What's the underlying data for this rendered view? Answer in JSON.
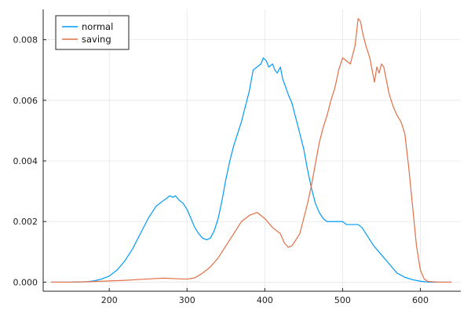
{
  "chart_data": {
    "type": "line",
    "xlim": [
      115,
      652
    ],
    "ylim": [
      -0.0003,
      0.009
    ],
    "x_ticks": [
      200,
      300,
      400,
      500,
      600
    ],
    "y_ticks": [
      0.0,
      0.002,
      0.004,
      0.006,
      0.008
    ],
    "y_tick_labels": [
      "0.000",
      "0.002",
      "0.004",
      "0.006",
      "0.008"
    ],
    "grid": true,
    "legend_position": "top-left",
    "series": [
      {
        "name": "normal",
        "color": "#009AFA",
        "points": [
          [
            125,
            0.0
          ],
          [
            150,
            0.0
          ],
          [
            170,
            1e-05
          ],
          [
            180,
            4e-05
          ],
          [
            190,
            0.0001
          ],
          [
            200,
            0.0002
          ],
          [
            210,
            0.0004
          ],
          [
            220,
            0.0007
          ],
          [
            230,
            0.0011
          ],
          [
            240,
            0.0016
          ],
          [
            250,
            0.0021
          ],
          [
            260,
            0.0025
          ],
          [
            270,
            0.0027
          ],
          [
            278,
            0.00285
          ],
          [
            282,
            0.0028
          ],
          [
            285,
            0.00285
          ],
          [
            290,
            0.0027
          ],
          [
            295,
            0.0026
          ],
          [
            300,
            0.0024
          ],
          [
            305,
            0.0021
          ],
          [
            310,
            0.0018
          ],
          [
            315,
            0.0016
          ],
          [
            320,
            0.00145
          ],
          [
            325,
            0.0014
          ],
          [
            330,
            0.00145
          ],
          [
            335,
            0.0017
          ],
          [
            340,
            0.0021
          ],
          [
            345,
            0.0027
          ],
          [
            350,
            0.0034
          ],
          [
            355,
            0.004
          ],
          [
            360,
            0.0045
          ],
          [
            365,
            0.0049
          ],
          [
            370,
            0.0053
          ],
          [
            375,
            0.0058
          ],
          [
            380,
            0.0063
          ],
          [
            385,
            0.007
          ],
          [
            390,
            0.0071
          ],
          [
            395,
            0.0072
          ],
          [
            398,
            0.0074
          ],
          [
            402,
            0.0073
          ],
          [
            405,
            0.0071
          ],
          [
            410,
            0.0072
          ],
          [
            413,
            0.007
          ],
          [
            416,
            0.0069
          ],
          [
            420,
            0.0071
          ],
          [
            423,
            0.0067
          ],
          [
            426,
            0.0065
          ],
          [
            430,
            0.0062
          ],
          [
            435,
            0.0059
          ],
          [
            440,
            0.0054
          ],
          [
            445,
            0.0049
          ],
          [
            450,
            0.0044
          ],
          [
            455,
            0.0037
          ],
          [
            460,
            0.0031
          ],
          [
            465,
            0.0026
          ],
          [
            470,
            0.0023
          ],
          [
            475,
            0.0021
          ],
          [
            480,
            0.002
          ],
          [
            485,
            0.002
          ],
          [
            490,
            0.002
          ],
          [
            495,
            0.002
          ],
          [
            500,
            0.002
          ],
          [
            505,
            0.0019
          ],
          [
            510,
            0.0019
          ],
          [
            515,
            0.0019
          ],
          [
            520,
            0.0019
          ],
          [
            525,
            0.0018
          ],
          [
            530,
            0.0016
          ],
          [
            540,
            0.0012
          ],
          [
            550,
            0.0009
          ],
          [
            560,
            0.0006
          ],
          [
            570,
            0.0003
          ],
          [
            580,
            0.00016
          ],
          [
            590,
            8e-05
          ],
          [
            600,
            3e-05
          ],
          [
            610,
            0.0
          ],
          [
            625,
            0.0
          ],
          [
            640,
            0.0
          ]
        ]
      },
      {
        "name": "saving",
        "color": "#E26F46",
        "points": [
          [
            125,
            0.0
          ],
          [
            150,
            0.0
          ],
          [
            180,
            2e-05
          ],
          [
            200,
            4e-05
          ],
          [
            220,
            6e-05
          ],
          [
            240,
            9e-05
          ],
          [
            260,
            0.00012
          ],
          [
            270,
            0.00013
          ],
          [
            280,
            0.00012
          ],
          [
            290,
            0.00011
          ],
          [
            300,
            0.0001
          ],
          [
            310,
            0.00014
          ],
          [
            320,
            0.0003
          ],
          [
            330,
            0.0005
          ],
          [
            340,
            0.0008
          ],
          [
            350,
            0.0012
          ],
          [
            360,
            0.0016
          ],
          [
            370,
            0.002
          ],
          [
            380,
            0.0022
          ],
          [
            390,
            0.0023
          ],
          [
            395,
            0.0022
          ],
          [
            400,
            0.0021
          ],
          [
            410,
            0.0018
          ],
          [
            420,
            0.0016
          ],
          [
            425,
            0.0013
          ],
          [
            430,
            0.00115
          ],
          [
            435,
            0.0012
          ],
          [
            440,
            0.0014
          ],
          [
            445,
            0.0016
          ],
          [
            450,
            0.0021
          ],
          [
            455,
            0.0026
          ],
          [
            460,
            0.0032
          ],
          [
            465,
            0.0039
          ],
          [
            470,
            0.0046
          ],
          [
            475,
            0.0051
          ],
          [
            480,
            0.0055
          ],
          [
            485,
            0.006
          ],
          [
            490,
            0.0064
          ],
          [
            495,
            0.007
          ],
          [
            500,
            0.0074
          ],
          [
            505,
            0.0073
          ],
          [
            510,
            0.0072
          ],
          [
            513,
            0.0075
          ],
          [
            516,
            0.0078
          ],
          [
            520,
            0.0087
          ],
          [
            523,
            0.0086
          ],
          [
            526,
            0.0082
          ],
          [
            530,
            0.0078
          ],
          [
            535,
            0.0074
          ],
          [
            538,
            0.007
          ],
          [
            541,
            0.0066
          ],
          [
            544,
            0.0071
          ],
          [
            547,
            0.0069
          ],
          [
            550,
            0.0072
          ],
          [
            553,
            0.0071
          ],
          [
            556,
            0.0067
          ],
          [
            560,
            0.0062
          ],
          [
            565,
            0.0058
          ],
          [
            570,
            0.0055
          ],
          [
            575,
            0.0053
          ],
          [
            580,
            0.0049
          ],
          [
            585,
            0.0038
          ],
          [
            590,
            0.0025
          ],
          [
            595,
            0.0012
          ],
          [
            600,
            0.0004
          ],
          [
            605,
            0.0001
          ],
          [
            610,
            2e-05
          ],
          [
            625,
            0.0
          ],
          [
            640,
            0.0
          ]
        ]
      }
    ]
  }
}
